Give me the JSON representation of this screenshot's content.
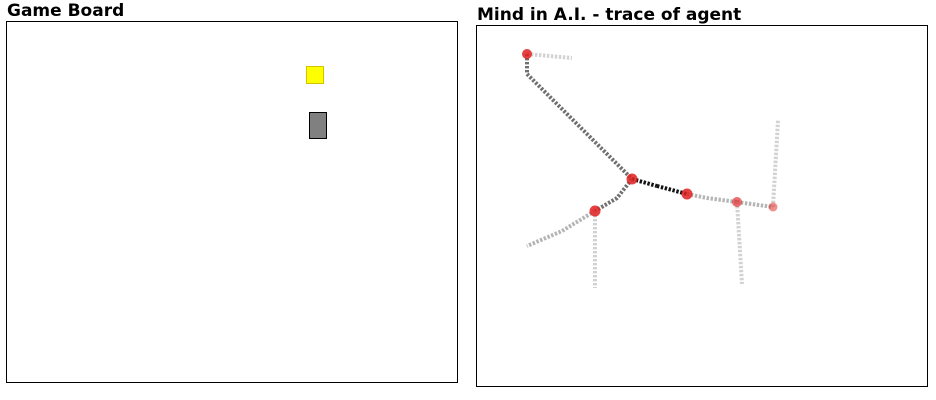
{
  "game_board": {
    "title": "Game Board",
    "goal": {
      "color": "#ffff00",
      "border": "#d4c400"
    },
    "agent": {
      "color": "#808080"
    }
  },
  "trace_panel": {
    "title": "Mind in A.I. - trace of agent",
    "colors": {
      "node_red": "#e02020",
      "path_dark": "#111111",
      "path_mid": "#707070",
      "path_light": "#b4b4b4",
      "path_faint": "#d2d2d2"
    }
  }
}
